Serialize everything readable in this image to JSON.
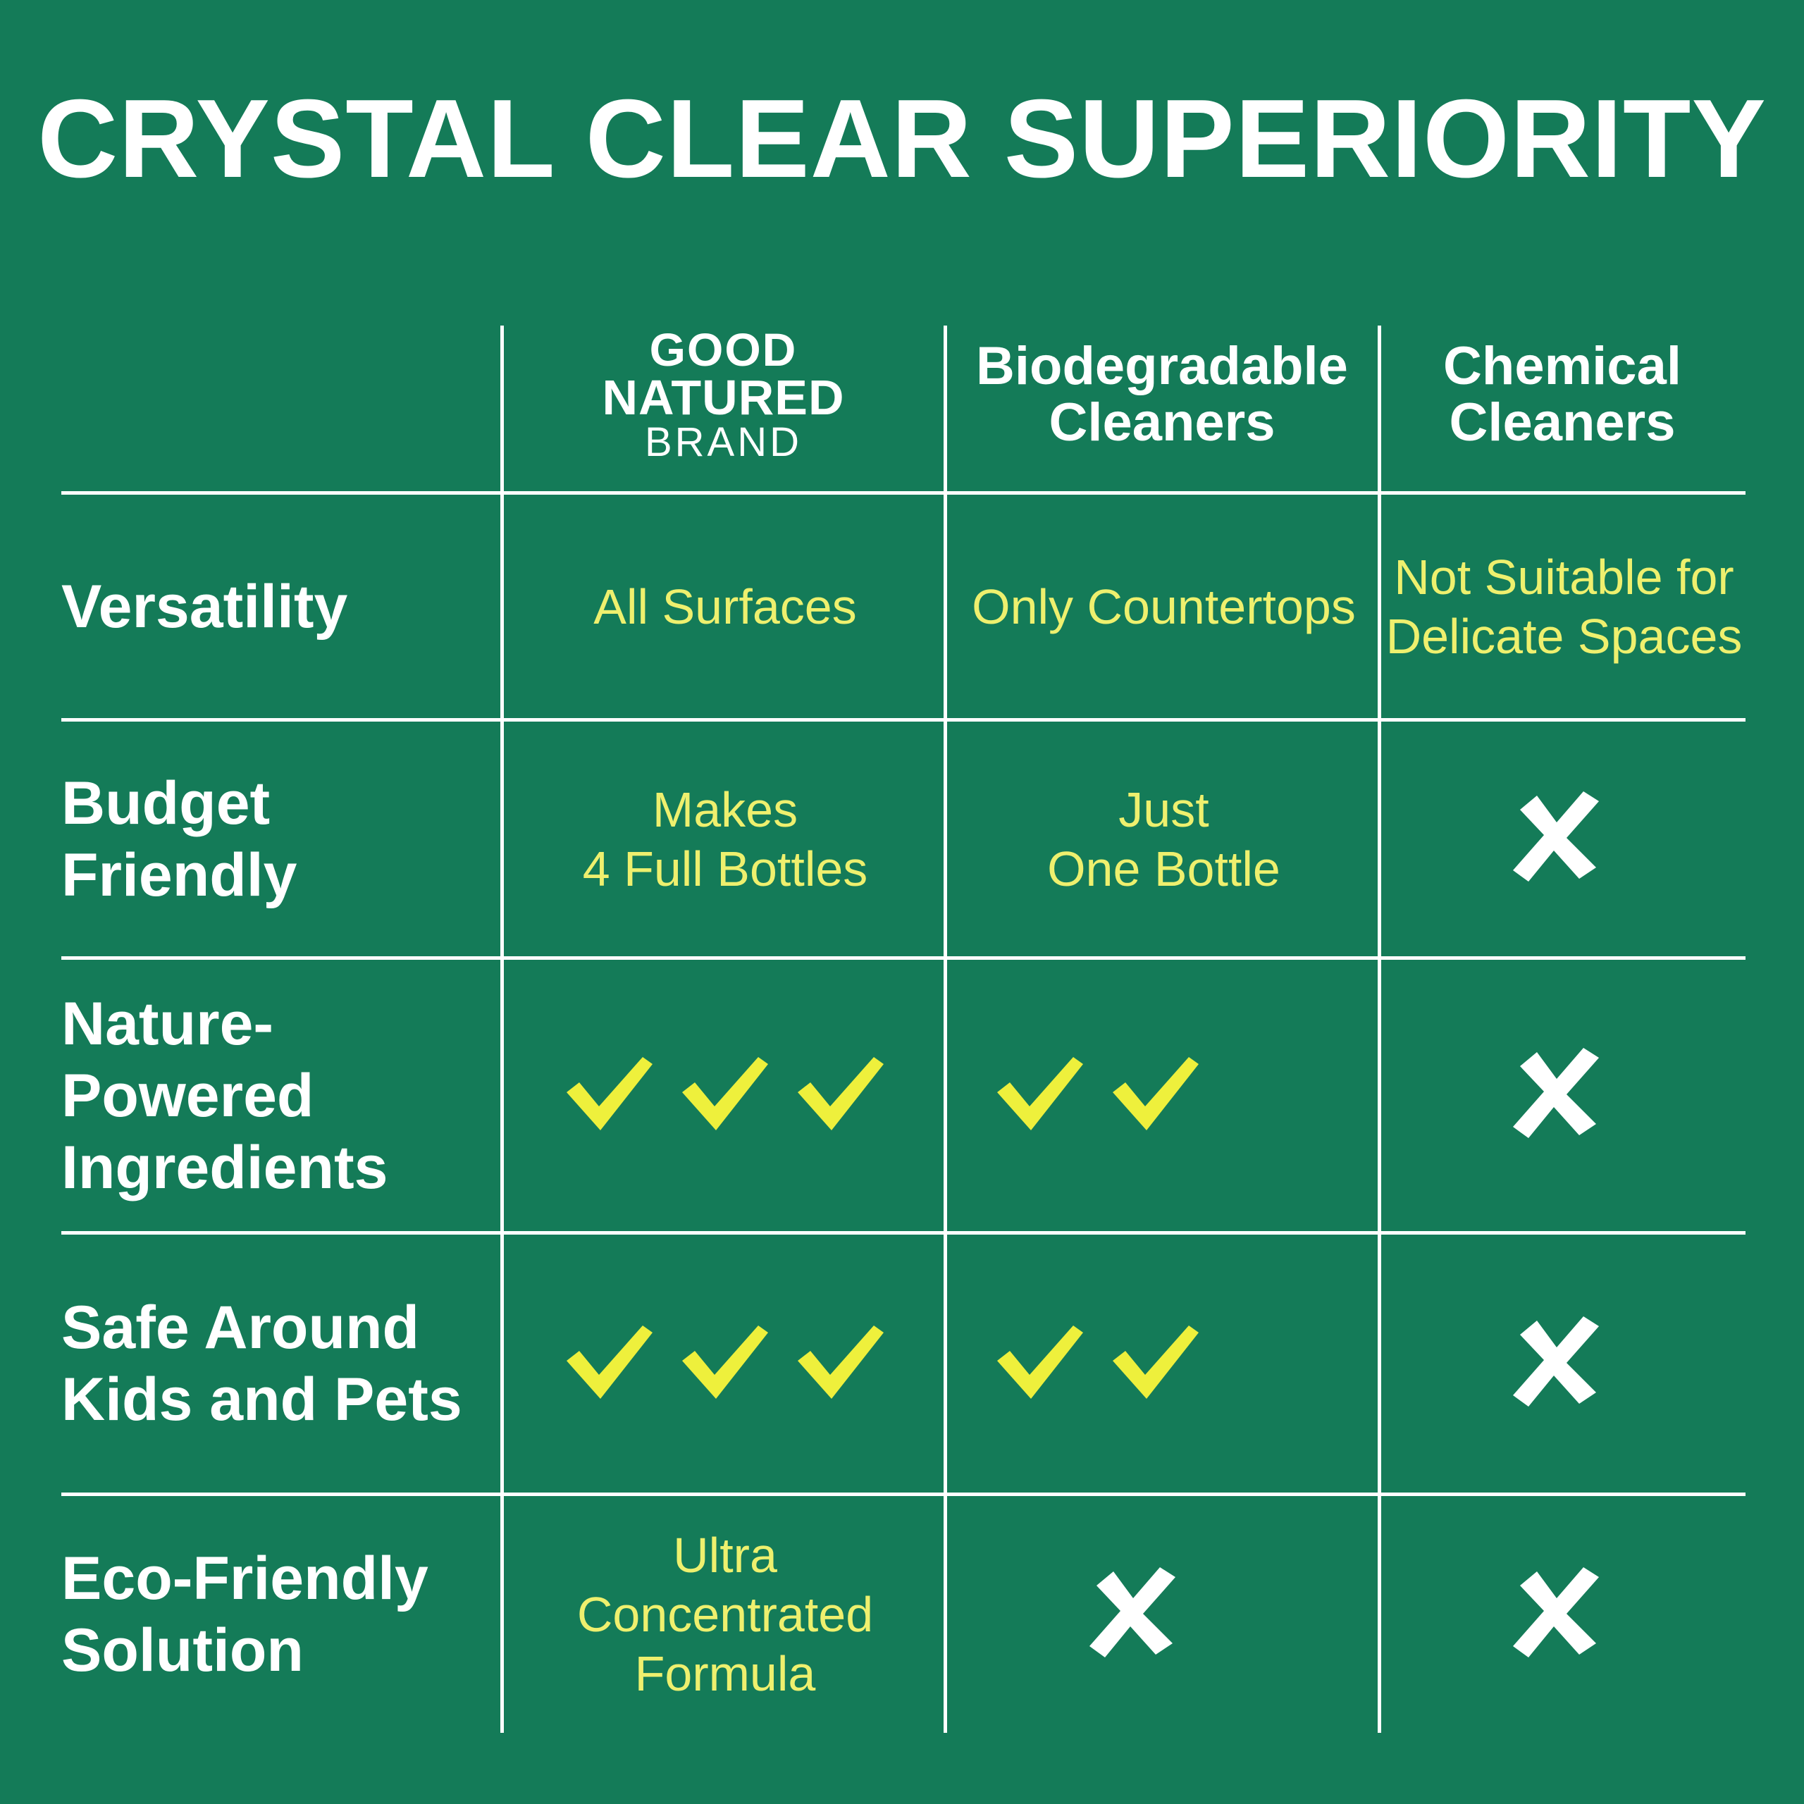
{
  "title": "CRYSTAL CLEAR SUPERIORITY",
  "colors": {
    "background": "#147b58",
    "accent_text": "#eef06e",
    "check": "#eef03c",
    "cross": "#ffffff",
    "lines": "#ffffff"
  },
  "columns": [
    {
      "logo": {
        "line1": "GOOD",
        "line2": "NATURED",
        "line3": "BRAND"
      }
    },
    {
      "label": "Biodegradable\nCleaners"
    },
    {
      "label": "Chemical\nCleaners"
    }
  ],
  "rows": [
    {
      "label": "Versatility",
      "cells": [
        {
          "text": "All Surfaces"
        },
        {
          "text": "Only Countertops"
        },
        {
          "text": "Not Suitable for\nDelicate Spaces"
        }
      ]
    },
    {
      "label": "Budget\nFriendly",
      "cells": [
        {
          "text": "Makes\n4 Full Bottles"
        },
        {
          "text": "Just\nOne Bottle"
        },
        {
          "icon": "cross-icon",
          "count": 1
        }
      ]
    },
    {
      "label": "Nature-\nPowered\nIngredients",
      "cells": [
        {
          "icon": "check-icon",
          "count": 3
        },
        {
          "icon": "check-icon",
          "count": 2
        },
        {
          "icon": "cross-icon",
          "count": 1
        }
      ]
    },
    {
      "label": "Safe Around\nKids and Pets",
      "cells": [
        {
          "icon": "check-icon",
          "count": 3
        },
        {
          "icon": "check-icon",
          "count": 2
        },
        {
          "icon": "cross-icon",
          "count": 1
        }
      ]
    },
    {
      "label": "Eco-Friendly\nSolution",
      "cells": [
        {
          "text": "Ultra\nConcentrated\nFormula"
        },
        {
          "icon": "cross-icon",
          "count": 1
        },
        {
          "icon": "cross-icon",
          "count": 1
        }
      ]
    }
  ]
}
